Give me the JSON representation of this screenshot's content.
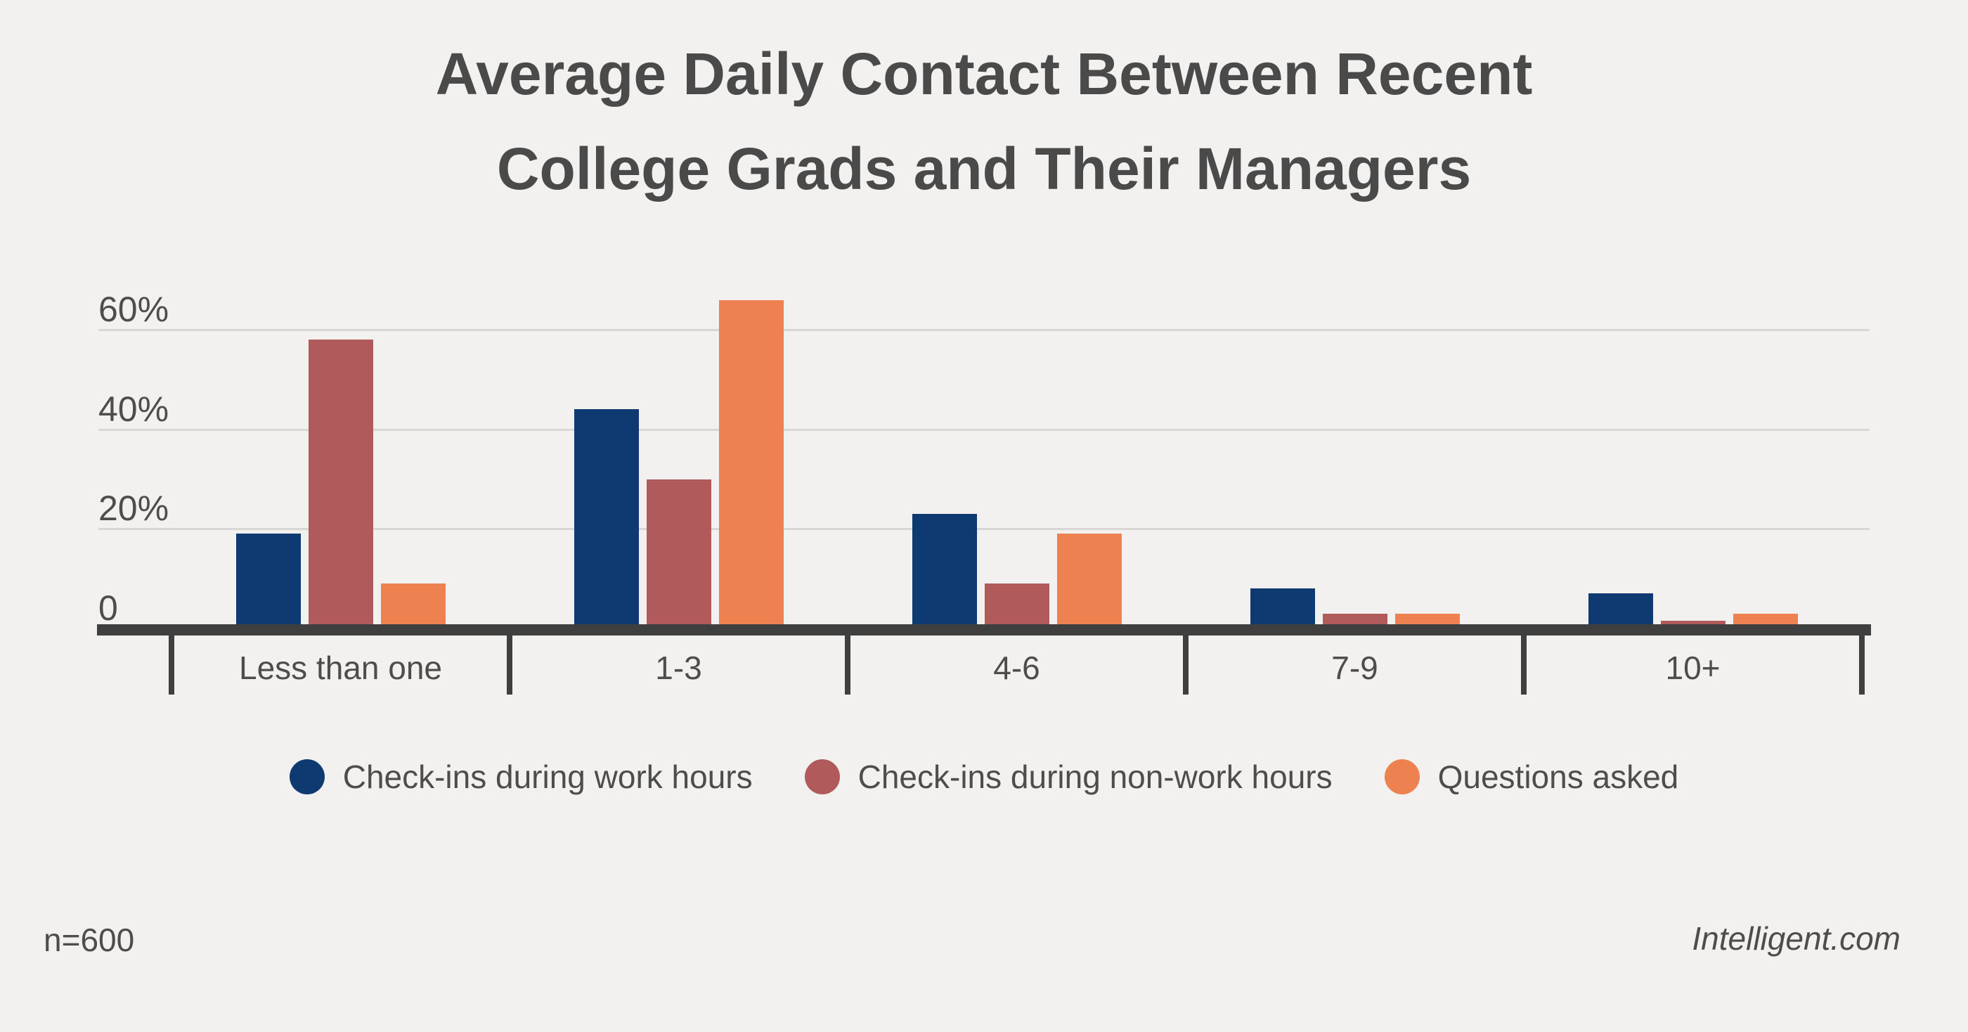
{
  "title": {
    "line1": "Average Daily Contact Between Recent",
    "line2": "College Grads and Their Managers"
  },
  "footer": {
    "sample_size": "n=600",
    "source": "Intelligent.com"
  },
  "colors": {
    "background": "#f2f1ef",
    "title_text": "#4a4a4a",
    "label_text": "#4d4d4d",
    "axis": "#3f3f3f",
    "gridline": "#d8d7d4"
  },
  "chart_data": {
    "type": "bar",
    "title": "Average Daily Contact Between Recent College Grads and Their Managers",
    "categories": [
      "Less than one",
      "1-3",
      "4-6",
      "7-9",
      "10+"
    ],
    "series": [
      {
        "name": "Check-ins during work hours",
        "color": "#0e3a71",
        "values": [
          19,
          44,
          23,
          8,
          7
        ]
      },
      {
        "name": "Check-ins during non-work hours",
        "color": "#b15a5c",
        "values": [
          58,
          30,
          9,
          3,
          1.5
        ]
      },
      {
        "name": "Questions asked",
        "color": "#ee8150",
        "values": [
          9,
          66,
          19,
          3,
          3
        ]
      }
    ],
    "y_axis_ticks": [
      {
        "label": "60%",
        "value": 60
      },
      {
        "label": "40%",
        "value": 40
      },
      {
        "label": "20%",
        "value": 20
      },
      {
        "label": "0",
        "value": 0
      }
    ],
    "ylim": [
      0,
      68
    ],
    "grid": "horizontal-only",
    "legend_position": "bottom",
    "sample_size": "n=600"
  }
}
